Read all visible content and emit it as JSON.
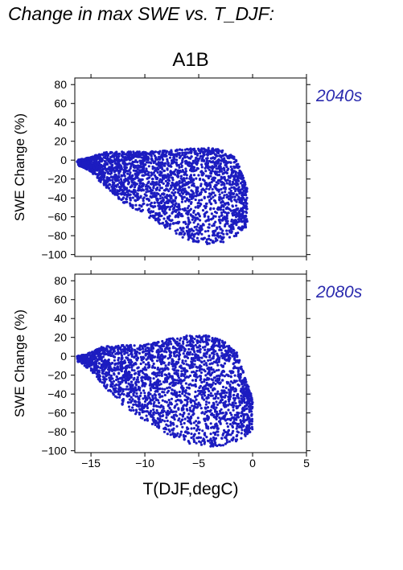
{
  "figure_title": "Change in max SWE vs. T_DJF:",
  "scenario": "A1B",
  "colors": {
    "points": "#1c1cc0",
    "period_label": "#2a2aae",
    "axes": "#000000"
  },
  "chart_data": [
    {
      "type": "scatter",
      "period_label": "2040s",
      "xlabel": "",
      "ylabel": "SWE Change (%)",
      "xlim": [
        -16.5,
        5
      ],
      "ylim": [
        -102,
        87
      ],
      "xticks": [
        -15,
        -10,
        -5,
        0,
        5
      ],
      "yticks": [
        -100,
        -80,
        -60,
        -40,
        -20,
        0,
        20,
        40,
        60,
        80
      ],
      "show_x_tick_labels": false,
      "grid": false,
      "point_cloud": {
        "x_range": [
          -16.3,
          -0.5
        ],
        "y_max": 13,
        "y_min": -90,
        "envelope": [
          {
            "x": -16.3,
            "y_top": 0,
            "y_bottom": -5
          },
          {
            "x": -15.0,
            "y_top": 3,
            "y_bottom": -12
          },
          {
            "x": -14.0,
            "y_top": 8,
            "y_bottom": -25
          },
          {
            "x": -12.0,
            "y_top": 9,
            "y_bottom": -45
          },
          {
            "x": -10.0,
            "y_top": 9,
            "y_bottom": -58
          },
          {
            "x": -8.0,
            "y_top": 10,
            "y_bottom": -72
          },
          {
            "x": -6.0,
            "y_top": 12,
            "y_bottom": -85
          },
          {
            "x": -4.0,
            "y_top": 13,
            "y_bottom": -90
          },
          {
            "x": -2.5,
            "y_top": 10,
            "y_bottom": -87
          },
          {
            "x": -1.5,
            "y_top": 2,
            "y_bottom": -80
          },
          {
            "x": -0.5,
            "y_top": -30,
            "y_bottom": -70
          }
        ]
      }
    },
    {
      "type": "scatter",
      "period_label": "2080s",
      "xlabel": "T(DJF,degC)",
      "ylabel": "SWE Change (%)",
      "xlim": [
        -16.5,
        5
      ],
      "ylim": [
        -102,
        87
      ],
      "xticks": [
        -15,
        -10,
        -5,
        0,
        5
      ],
      "xtick_labels": [
        "−15",
        "−10",
        "−5",
        "0",
        "5"
      ],
      "yticks": [
        -100,
        -80,
        -60,
        -40,
        -20,
        0,
        20,
        40,
        60,
        80
      ],
      "show_x_tick_labels": true,
      "grid": false,
      "point_cloud": {
        "x_range": [
          -16.3,
          0
        ],
        "y_max": 24,
        "y_min": -97,
        "envelope": [
          {
            "x": -16.3,
            "y_top": 0,
            "y_bottom": -5
          },
          {
            "x": -15.0,
            "y_top": 4,
            "y_bottom": -15
          },
          {
            "x": -14.0,
            "y_top": 10,
            "y_bottom": -30
          },
          {
            "x": -12.0,
            "y_top": 12,
            "y_bottom": -52
          },
          {
            "x": -10.0,
            "y_top": 12,
            "y_bottom": -68
          },
          {
            "x": -8.0,
            "y_top": 18,
            "y_bottom": -82
          },
          {
            "x": -6.0,
            "y_top": 22,
            "y_bottom": -92
          },
          {
            "x": -4.0,
            "y_top": 22,
            "y_bottom": -96
          },
          {
            "x": -2.5,
            "y_top": 15,
            "y_bottom": -95
          },
          {
            "x": -1.5,
            "y_top": 5,
            "y_bottom": -90
          },
          {
            "x": 0.0,
            "y_top": -45,
            "y_bottom": -80
          }
        ]
      }
    }
  ]
}
